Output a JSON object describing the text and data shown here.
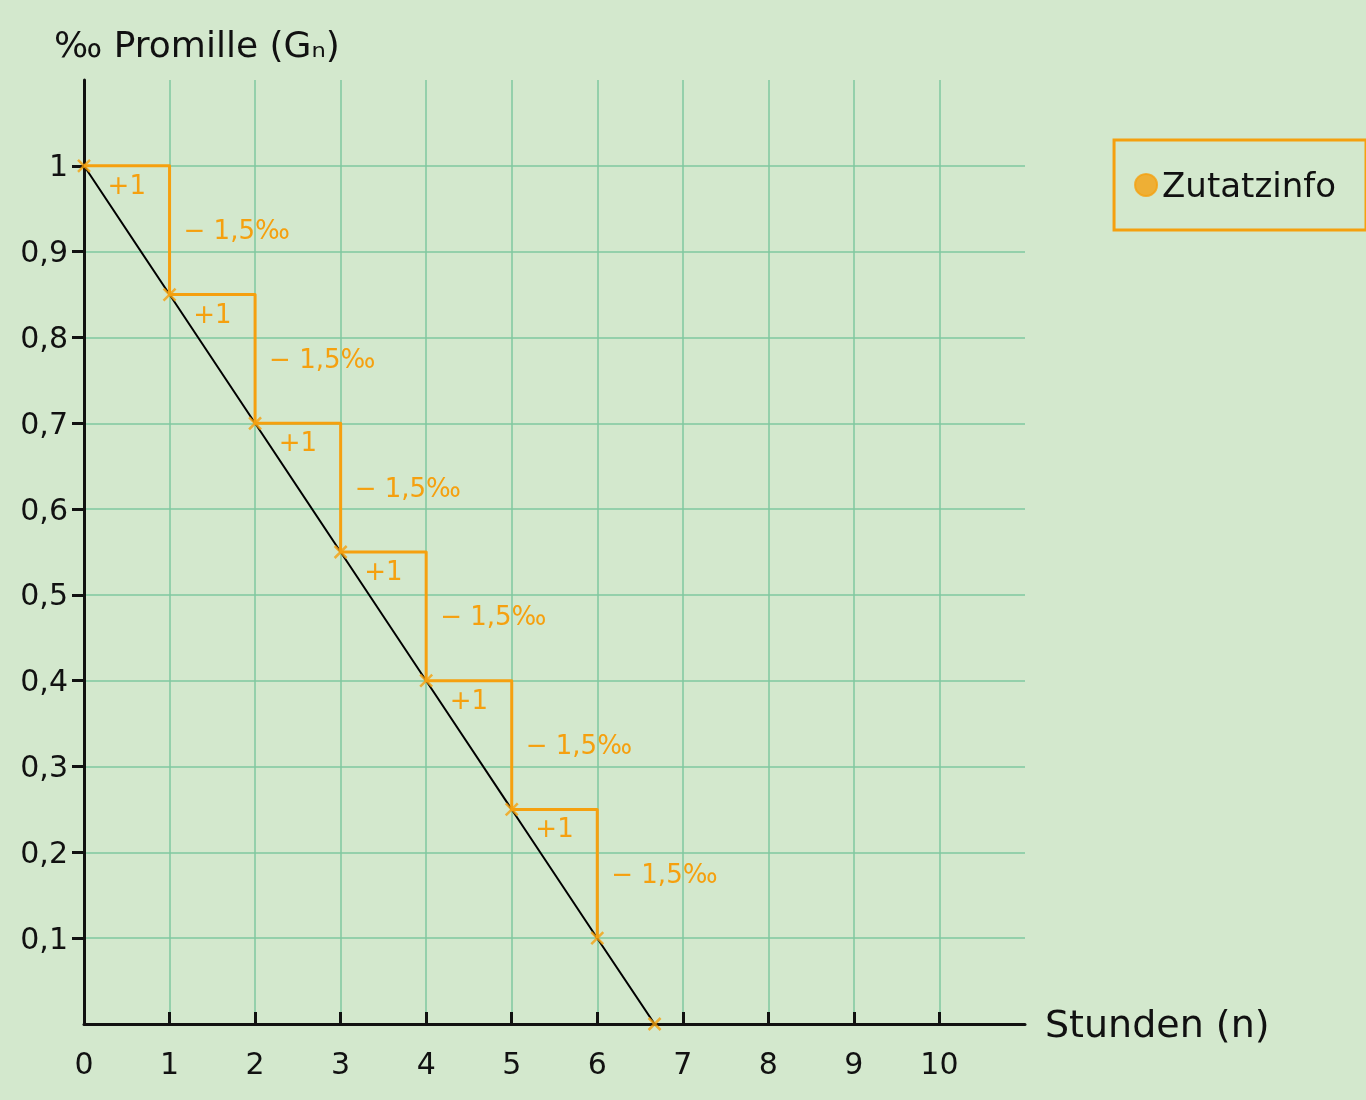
{
  "chart_data": {
    "type": "line",
    "xlabel": "Stunden (n)",
    "ylabel": "‰ Promille (Gₙ)",
    "xlim": [
      0,
      11
    ],
    "ylim": [
      0,
      1.1
    ],
    "xticks": [
      0,
      1,
      2,
      3,
      4,
      5,
      6,
      7,
      8,
      9,
      10
    ],
    "yticks": [
      {
        "value": 0.1,
        "label": "0,1"
      },
      {
        "value": 0.2,
        "label": "0,2"
      },
      {
        "value": 0.3,
        "label": "0,3"
      },
      {
        "value": 0.4,
        "label": "0,4"
      },
      {
        "value": 0.5,
        "label": "0,5"
      },
      {
        "value": 0.6,
        "label": "0,6"
      },
      {
        "value": 0.7,
        "label": "0,7"
      },
      {
        "value": 0.8,
        "label": "0,8"
      },
      {
        "value": 0.9,
        "label": "0,9"
      },
      {
        "value": 1,
        "label": "1"
      }
    ],
    "grid": true,
    "legend": "top right",
    "series": [
      {
        "color": "#000000",
        "marker": "none",
        "x": [
          0,
          1,
          2,
          3,
          4,
          5,
          6,
          6.67
        ],
        "values": [
          1,
          0.85,
          0.7,
          0.55,
          0.4,
          0.25,
          0.1,
          0
        ]
      },
      {
        "type": "step",
        "color": "#f5a00f",
        "marker": "none",
        "x": [
          0,
          1,
          2,
          3,
          4,
          5,
          6
        ],
        "values": [
          1,
          0.85,
          0.7,
          0.55,
          0.4,
          0.25,
          0.1
        ]
      },
      {
        "type": "scatter",
        "name": "Zutatzinfo",
        "color": "#f5a00f",
        "marker": "cross",
        "x": [
          0,
          1,
          2,
          3,
          4,
          5,
          6,
          6.67
        ],
        "values": [
          1,
          0.85,
          0.7,
          0.55,
          0.4,
          0.25,
          0.1,
          0
        ]
      }
    ],
    "annotations": [
      {
        "text": "+1",
        "x": 0.5,
        "y": 1
      },
      {
        "text": "− 1,5‰",
        "x": 1,
        "y": 0.925
      },
      {
        "text": "+1",
        "x": 1.5,
        "y": 0.85
      },
      {
        "text": "− 1,5‰",
        "x": 2,
        "y": 0.775
      },
      {
        "text": "+1",
        "x": 2.5,
        "y": 0.7
      },
      {
        "text": "− 1,5‰",
        "x": 3,
        "y": 0.625
      },
      {
        "text": "+1",
        "x": 3.5,
        "y": 0.55
      },
      {
        "text": "− 1,5‰",
        "x": 4,
        "y": 0.475
      },
      {
        "text": "+1",
        "x": 4.5,
        "y": 0.4
      },
      {
        "text": "− 1,5‰",
        "x": 5,
        "y": 0.325
      },
      {
        "text": "+1",
        "x": 5.5,
        "y": 0.25
      },
      {
        "text": "− 1,5‰",
        "x": 6,
        "y": 0.175
      }
    ]
  }
}
